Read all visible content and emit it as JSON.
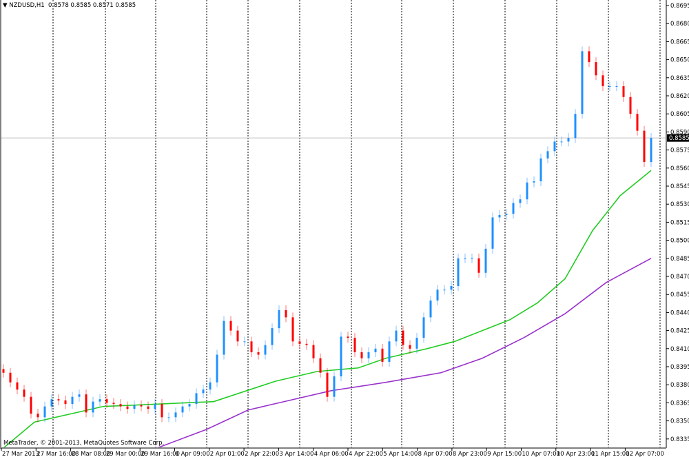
{
  "header": {
    "symbol": "NZDUSD,H1",
    "ohlc": "0.8578 0.8585 0.8571 0.8585",
    "menu_icon": "triangle-down-icon"
  },
  "copyright": "MetaTrader, © 2001-2013, MetaQuotes Software Corp.",
  "colors": {
    "bull": "#1e90ff",
    "bear": "#ff0000",
    "ma_fast": "#22cc22",
    "ma_slow": "#9932cc",
    "grid": "#000000",
    "price_line": "#c0c0c0",
    "price_label_bg": "#000000"
  },
  "chart_data": {
    "type": "candlestick",
    "timeframe": "H1",
    "ylim": [
      0.8327,
      0.87
    ],
    "y_ticks": [
      "0.8695",
      "0.8680",
      "0.8665",
      "0.8650",
      "0.8635",
      "0.8620",
      "0.8605",
      "0.8590",
      "0.8575",
      "0.8560",
      "0.8545",
      "0.8530",
      "0.8515",
      "0.8500",
      "0.8485",
      "0.8470",
      "0.8455",
      "0.8440",
      "0.8425",
      "0.8410",
      "0.8395",
      "0.8380",
      "0.8365",
      "0.8350",
      "0.8335"
    ],
    "x_ticks": [
      "27 Mar 2013",
      "27 Mar 16:00",
      "28 Mar 08:00",
      "29 Mar 00:00",
      "29 Mar 16:00",
      "1 Apr 09:00",
      "2 Apr 01:00",
      "2 Apr 22:00",
      "3 Apr 14:00",
      "4 Apr 06:00",
      "4 Apr 22:00",
      "5 Apr 14:00",
      "8 Apr 07:00",
      "8 Apr 23:00",
      "9 Apr 15:00",
      "10 Apr 07:00",
      "10 Apr 23:00",
      "11 Apr 15:00",
      "12 Apr 07:00"
    ],
    "current_price": "0.8585",
    "first_open": 0.8393,
    "close": [
      0.839,
      0.8382,
      0.8376,
      0.837,
      0.8356,
      0.8353,
      0.8362,
      0.8368,
      0.8367,
      0.8364,
      0.837,
      0.8372,
      0.8357,
      0.8366,
      0.8368,
      0.8365,
      0.8364,
      0.8362,
      0.836,
      0.8363,
      0.8362,
      0.836,
      0.8364,
      0.8353,
      0.8353,
      0.8357,
      0.8362,
      0.8364,
      0.8373,
      0.8376,
      0.8382,
      0.8405,
      0.8433,
      0.8425,
      0.8416,
      0.8416,
      0.8407,
      0.8405,
      0.8413,
      0.8427,
      0.8442,
      0.8436,
      0.8416,
      0.8414,
      0.8413,
      0.8402,
      0.839,
      0.837,
      0.8387,
      0.842,
      0.8419,
      0.8407,
      0.8402,
      0.8407,
      0.841,
      0.8399,
      0.8416,
      0.8425,
      0.8413,
      0.841,
      0.8419,
      0.8436,
      0.845,
      0.8459,
      0.8459,
      0.8462,
      0.8485,
      0.8485,
      0.8485,
      0.8473,
      0.8493,
      0.8519,
      0.8521,
      0.8522,
      0.8531,
      0.8534,
      0.8548,
      0.8549,
      0.8568,
      0.8574,
      0.8582,
      0.8582,
      0.8585,
      0.8605,
      0.8657,
      0.8648,
      0.8637,
      0.8628,
      0.8628,
      0.8628,
      0.8619,
      0.8605,
      0.8591,
      0.8565,
      0.8585
    ],
    "moving_averages": [
      {
        "color": "#22cc22",
        "points": [
          [
            0,
            0.8327
          ],
          [
            4.5,
            0.8349
          ],
          [
            14.5,
            0.8362
          ],
          [
            22.5,
            0.8364
          ],
          [
            30.5,
            0.8366
          ],
          [
            39.5,
            0.8383
          ],
          [
            45.5,
            0.8391
          ],
          [
            51.5,
            0.8394
          ],
          [
            55.5,
            0.8402
          ],
          [
            61.5,
            0.841
          ],
          [
            65.5,
            0.8416
          ],
          [
            69.5,
            0.8425
          ],
          [
            73.5,
            0.8434
          ],
          [
            77.5,
            0.8448
          ],
          [
            81.5,
            0.8468
          ],
          [
            85.5,
            0.8508
          ],
          [
            89.5,
            0.8537
          ],
          [
            94,
            0.8558
          ]
        ]
      },
      {
        "color": "#9932cc",
        "points": [
          [
            22.3,
            0.8327
          ],
          [
            29.5,
            0.8343
          ],
          [
            35.5,
            0.8359
          ],
          [
            41.5,
            0.8367
          ],
          [
            47.5,
            0.8375
          ],
          [
            55.5,
            0.8382
          ],
          [
            63.5,
            0.839
          ],
          [
            69.5,
            0.8402
          ],
          [
            75.5,
            0.8419
          ],
          [
            81.5,
            0.8439
          ],
          [
            87.5,
            0.8465
          ],
          [
            94,
            0.8485
          ]
        ]
      }
    ]
  }
}
